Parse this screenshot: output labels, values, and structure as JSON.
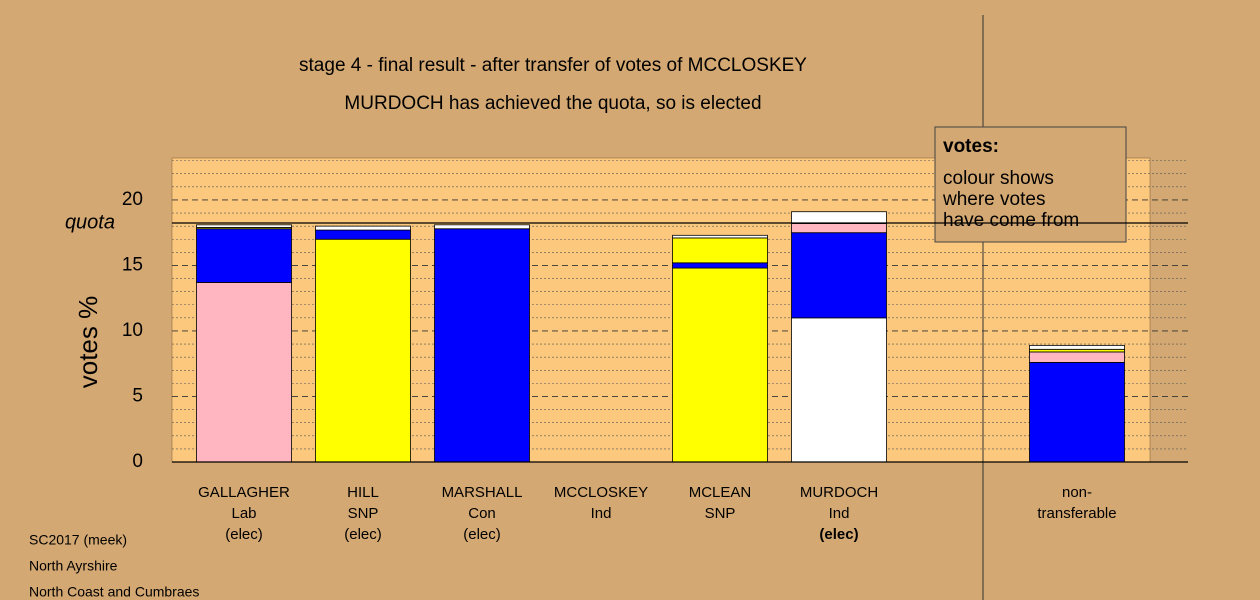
{
  "chart_data": {
    "type": "stacked-bar",
    "title": "stage 4 - final result - after transfer of votes of MCCLOSKEY",
    "subtitle": "MURDOCH has achieved the quota, so is elected",
    "y_label": "votes %",
    "ylim": [
      0,
      23.2
    ],
    "yticks": [
      0,
      5,
      10,
      15,
      20
    ],
    "minor_yticks": [
      1,
      2,
      3,
      4,
      6,
      7,
      8,
      9,
      11,
      12,
      13,
      14,
      16,
      17,
      18,
      19,
      21,
      22,
      23
    ],
    "quota": 18.24,
    "quota_label": "quota",
    "categories": [
      [
        "GALLAGHER",
        "Lab",
        "(elec)"
      ],
      [
        "HILL",
        "SNP",
        "(elec)"
      ],
      [
        "MARSHALL",
        "Con",
        "(elec)"
      ],
      [
        "MCCLOSKEY",
        "Ind"
      ],
      [
        "MCLEAN",
        "SNP"
      ],
      [
        "MURDOCH",
        "Ind",
        "(elec)"
      ],
      null,
      [
        "non-",
        "transferable"
      ]
    ],
    "highlight_category": 5,
    "stacks": [
      [
        {
          "color": "#ffb6c1",
          "value": 13.7
        },
        {
          "color": "#0000ff",
          "value": 4.1
        },
        {
          "color": "#ffff00",
          "value": 0.1
        },
        {
          "color": "#ffffff",
          "value": 0.2
        }
      ],
      [
        {
          "color": "#ffff00",
          "value": 17.0
        },
        {
          "color": "#0000ff",
          "value": 0.7
        },
        {
          "color": "#ffffff",
          "value": 0.3
        }
      ],
      [
        {
          "color": "#0000ff",
          "value": 17.8
        },
        {
          "color": "#ffffff",
          "value": 0.3
        }
      ],
      [],
      [
        {
          "color": "#ffff00",
          "value": 14.8
        },
        {
          "color": "#0000ff",
          "value": 0.4
        },
        {
          "color": "#ffff00",
          "value": 1.9
        },
        {
          "color": "#ffffff",
          "value": 0.2
        }
      ],
      [
        {
          "color": "#ffffff",
          "value": 11.0
        },
        {
          "color": "#0000ff",
          "value": 6.5
        },
        {
          "color": "#ffb6c1",
          "value": 0.7
        },
        {
          "color": "#ffffff",
          "value": 0.9
        }
      ],
      [],
      [
        {
          "color": "#0000ff",
          "value": 7.6
        },
        {
          "color": "#ffb6c1",
          "value": 0.8
        },
        {
          "color": "#ffff00",
          "value": 0.2
        },
        {
          "color": "#ffffff",
          "value": 0.3
        }
      ]
    ],
    "legend": {
      "title": "votes:",
      "lines": [
        "colour shows",
        "where votes",
        "have come from"
      ]
    },
    "footer": [
      "SC2017 (meek)",
      "North Ayrshire",
      "North Coast and Cumbraes"
    ]
  }
}
